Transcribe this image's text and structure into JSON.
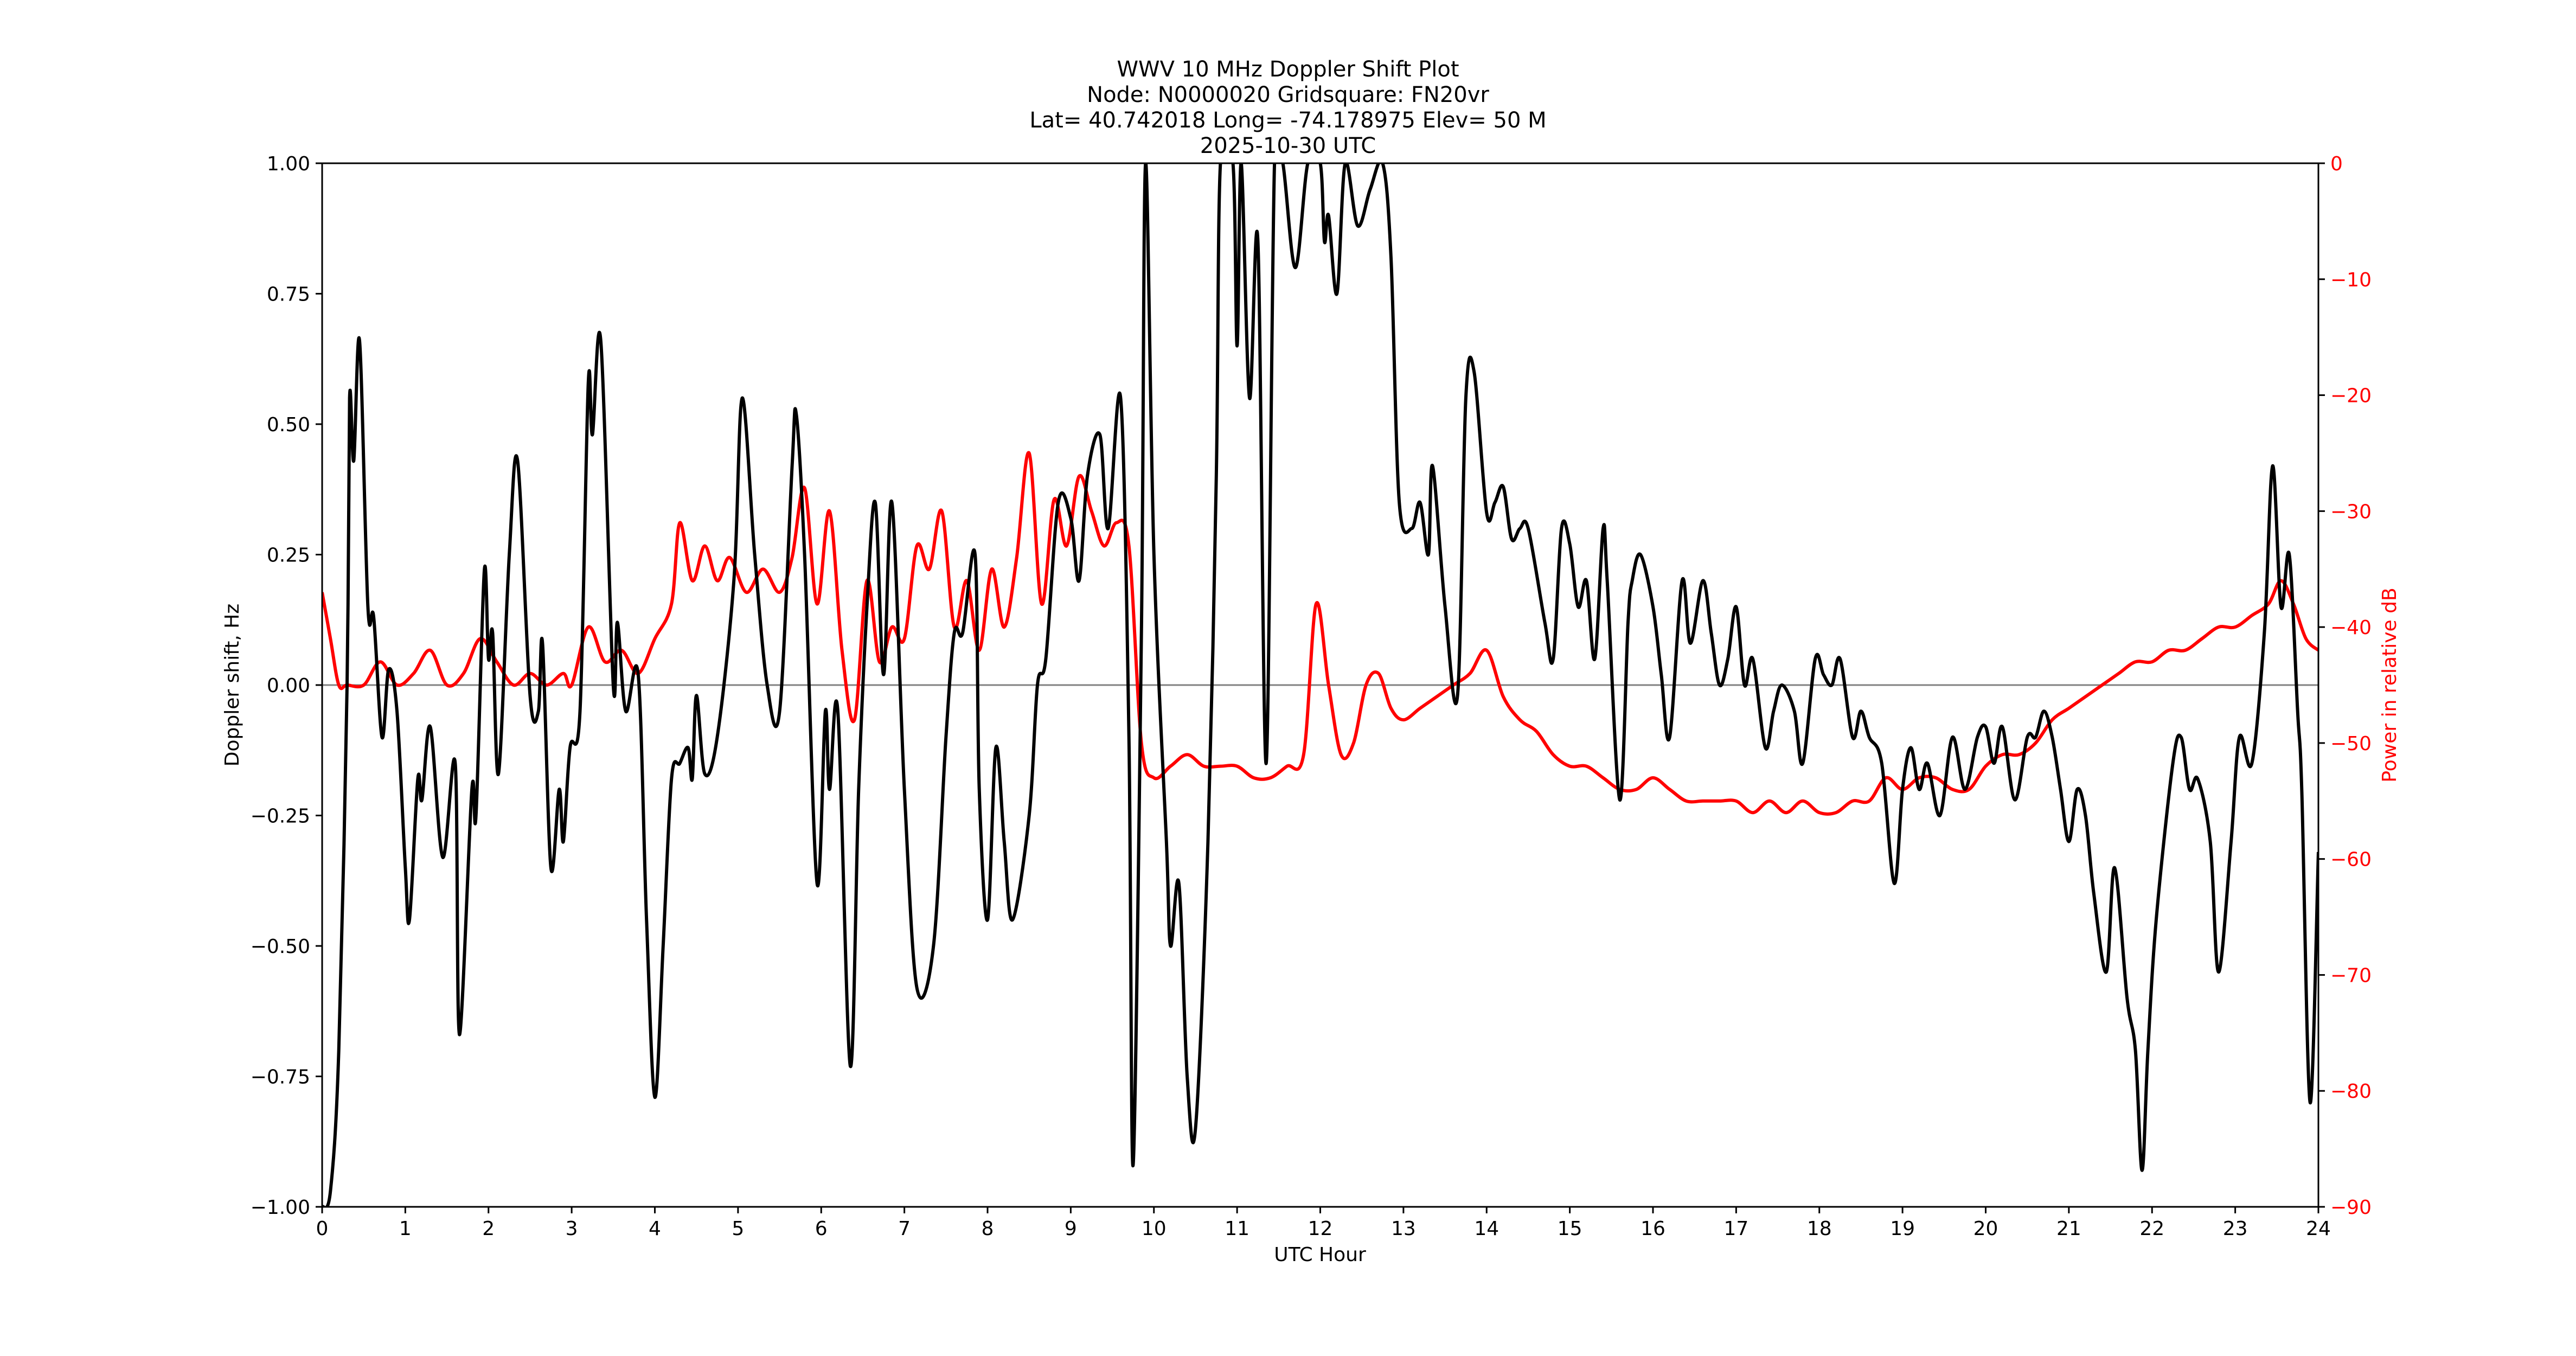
{
  "title": {
    "line1": "WWV 10 MHz Doppler Shift Plot",
    "line2": "Node:  N0000020     Gridsquare:  FN20vr",
    "line3": "Lat= 40.742018    Long= -74.178975    Elev= 50 M",
    "line4": "2025-10-30  UTC"
  },
  "axes": {
    "xlabel": "UTC Hour",
    "ylabel_left": "Doppler shift, Hz",
    "ylabel_right": "Power in relative dB",
    "x_ticks": [
      "0",
      "1",
      "2",
      "3",
      "4",
      "5",
      "6",
      "7",
      "8",
      "9",
      "10",
      "11",
      "12",
      "13",
      "14",
      "15",
      "16",
      "17",
      "18",
      "19",
      "20",
      "21",
      "22",
      "23",
      "24"
    ],
    "y_left_ticks": [
      "1.00",
      "0.75",
      "0.50",
      "0.25",
      "0.00",
      "−0.25",
      "−0.50",
      "−0.75",
      "−1.00"
    ],
    "y_right_ticks": [
      "0",
      "−10",
      "−20",
      "−30",
      "−40",
      "−50",
      "−60",
      "−70",
      "−80",
      "−90"
    ]
  },
  "colors": {
    "doppler": "#000000",
    "power": "#ff0000",
    "zero_line": "#808080",
    "right_axis_text": "#ff0000"
  },
  "chart_data": {
    "type": "line",
    "title": "WWV 10 MHz Doppler Shift Plot — Node: N0000020  Gridsquare: FN20vr — Lat= 40.742018 Long= -74.178975 Elev= 50 M — 2025-10-30 UTC",
    "xlabel": "UTC Hour",
    "ylabel": "Doppler shift, Hz",
    "ylabel_right": "Power in relative dB",
    "xlim": [
      0,
      24
    ],
    "ylim": [
      -1.0,
      1.0
    ],
    "ylim_right": [
      -90,
      0
    ],
    "grid": false,
    "reference_line": {
      "y": 0.0,
      "color": "#808080"
    },
    "series": [
      {
        "name": "Doppler shift, Hz",
        "axis": "left",
        "color": "#000000",
        "x": [
          0,
          0.1,
          0.2,
          0.3,
          0.33,
          0.38,
          0.45,
          0.55,
          0.62,
          0.72,
          0.8,
          0.9,
          1.0,
          1.05,
          1.15,
          1.2,
          1.3,
          1.45,
          1.6,
          1.65,
          1.8,
          1.85,
          1.95,
          2.0,
          2.05,
          2.12,
          2.25,
          2.35,
          2.5,
          2.6,
          2.65,
          2.75,
          2.85,
          2.9,
          2.98,
          3.1,
          3.2,
          3.25,
          3.35,
          3.5,
          3.55,
          3.65,
          3.8,
          3.9,
          4.0,
          4.1,
          4.2,
          4.3,
          4.4,
          4.45,
          4.5,
          4.6,
          4.75,
          4.95,
          5.05,
          5.2,
          5.35,
          5.5,
          5.65,
          5.7,
          5.8,
          5.95,
          6.05,
          6.1,
          6.2,
          6.35,
          6.45,
          6.55,
          6.65,
          6.75,
          6.85,
          7.0,
          7.15,
          7.35,
          7.5,
          7.6,
          7.7,
          7.85,
          7.9,
          8.0,
          8.1,
          8.2,
          8.3,
          8.5,
          8.6,
          8.7,
          8.85,
          9.0,
          9.1,
          9.2,
          9.35,
          9.45,
          9.6,
          9.7,
          9.75,
          9.85,
          9.9,
          10.0,
          10.15,
          10.2,
          10.3,
          10.4,
          10.5,
          10.65,
          10.75,
          10.8,
          10.95,
          11.0,
          11.05,
          11.15,
          11.25,
          11.35,
          11.45,
          11.55,
          11.7,
          11.85,
          12.0,
          12.05,
          12.1,
          12.2,
          12.3,
          12.45,
          12.6,
          12.75,
          12.85,
          12.95,
          13.1,
          13.2,
          13.3,
          13.35,
          13.5,
          13.65,
          13.75,
          13.85,
          14.0,
          14.1,
          14.2,
          14.3,
          14.4,
          14.5,
          14.7,
          14.8,
          14.9,
          15.0,
          15.1,
          15.2,
          15.3,
          15.4,
          15.45,
          15.6,
          15.7,
          15.75,
          15.85,
          16.0,
          16.1,
          16.2,
          16.35,
          16.45,
          16.6,
          16.7,
          16.8,
          16.9,
          17.0,
          17.1,
          17.2,
          17.35,
          17.45,
          17.55,
          17.7,
          17.8,
          17.95,
          18.05,
          18.15,
          18.25,
          18.4,
          18.5,
          18.6,
          18.75,
          18.9,
          19.0,
          19.1,
          19.2,
          19.3,
          19.45,
          19.6,
          19.75,
          19.9,
          20.0,
          20.1,
          20.2,
          20.35,
          20.5,
          20.6,
          20.7,
          20.8,
          20.9,
          21.0,
          21.1,
          21.2,
          21.3,
          21.45,
          21.55,
          21.7,
          21.8,
          21.88,
          21.95,
          22.05,
          22.25,
          22.35,
          22.45,
          22.55,
          22.7,
          22.8,
          22.95,
          23.05,
          23.2,
          23.35,
          23.45,
          23.55,
          23.65,
          23.75,
          23.8,
          23.9,
          24.0
        ],
        "values": [
          -1.0,
          -0.97,
          -0.7,
          0.0,
          0.55,
          0.43,
          0.66,
          0.15,
          0.13,
          -0.1,
          0.03,
          -0.05,
          -0.35,
          -0.45,
          -0.18,
          -0.22,
          -0.08,
          -0.33,
          -0.15,
          -0.67,
          -0.2,
          -0.25,
          0.22,
          0.05,
          0.1,
          -0.17,
          0.25,
          0.43,
          -0.02,
          -0.05,
          0.08,
          -0.35,
          -0.2,
          -0.3,
          -0.12,
          -0.05,
          0.58,
          0.48,
          0.66,
          0.0,
          0.12,
          -0.05,
          0.02,
          -0.45,
          -0.79,
          -0.5,
          -0.18,
          -0.15,
          -0.12,
          -0.18,
          -0.02,
          -0.17,
          -0.1,
          0.2,
          0.55,
          0.25,
          0.0,
          -0.05,
          0.42,
          0.52,
          0.25,
          -0.38,
          -0.05,
          -0.2,
          -0.05,
          -0.73,
          -0.2,
          0.15,
          0.35,
          0.02,
          0.35,
          -0.2,
          -0.58,
          -0.5,
          -0.1,
          0.1,
          0.1,
          0.25,
          -0.2,
          -0.45,
          -0.12,
          -0.3,
          -0.45,
          -0.25,
          0.0,
          0.05,
          0.35,
          0.32,
          0.2,
          0.4,
          0.48,
          0.3,
          0.55,
          -0.1,
          -0.92,
          0.1,
          1.0,
          0.25,
          -0.3,
          -0.5,
          -0.38,
          -0.75,
          -0.85,
          -0.3,
          0.4,
          1.0,
          1.0,
          0.65,
          1.0,
          0.55,
          0.85,
          -0.15,
          1.0,
          1.0,
          0.8,
          1.0,
          1.0,
          0.85,
          0.9,
          0.75,
          1.0,
          0.88,
          0.95,
          1.0,
          0.82,
          0.35,
          0.3,
          0.35,
          0.25,
          0.42,
          0.15,
          -0.02,
          0.55,
          0.6,
          0.33,
          0.35,
          0.38,
          0.28,
          0.3,
          0.3,
          0.12,
          0.05,
          0.3,
          0.27,
          0.15,
          0.2,
          0.05,
          0.3,
          0.2,
          -0.22,
          0.12,
          0.2,
          0.25,
          0.15,
          0.02,
          -0.1,
          0.2,
          0.08,
          0.2,
          0.1,
          0.0,
          0.05,
          0.15,
          0.0,
          0.05,
          -0.12,
          -0.05,
          0.0,
          -0.05,
          -0.15,
          0.05,
          0.02,
          0.0,
          0.05,
          -0.1,
          -0.05,
          -0.1,
          -0.15,
          -0.38,
          -0.2,
          -0.12,
          -0.2,
          -0.15,
          -0.25,
          -0.1,
          -0.2,
          -0.1,
          -0.08,
          -0.15,
          -0.08,
          -0.22,
          -0.1,
          -0.1,
          -0.05,
          -0.1,
          -0.2,
          -0.3,
          -0.2,
          -0.25,
          -0.4,
          -0.55,
          -0.35,
          -0.6,
          -0.7,
          -0.93,
          -0.7,
          -0.45,
          -0.15,
          -0.1,
          -0.2,
          -0.18,
          -0.3,
          -0.55,
          -0.3,
          -0.1,
          -0.15,
          0.1,
          0.42,
          0.15,
          0.25,
          -0.05,
          -0.2,
          -0.8,
          -0.32
        ]
      },
      {
        "name": "Power in relative dB",
        "axis": "right",
        "color": "#ff0000",
        "x": [
          0,
          0.1,
          0.2,
          0.3,
          0.5,
          0.7,
          0.9,
          1.1,
          1.3,
          1.5,
          1.7,
          1.9,
          2.1,
          2.3,
          2.5,
          2.7,
          2.9,
          3.0,
          3.2,
          3.4,
          3.6,
          3.8,
          4.0,
          4.2,
          4.3,
          4.45,
          4.6,
          4.75,
          4.9,
          5.1,
          5.3,
          5.5,
          5.65,
          5.8,
          5.95,
          6.1,
          6.25,
          6.4,
          6.55,
          6.7,
          6.85,
          7.0,
          7.15,
          7.3,
          7.45,
          7.6,
          7.75,
          7.9,
          8.05,
          8.2,
          8.35,
          8.5,
          8.65,
          8.8,
          8.95,
          9.1,
          9.25,
          9.4,
          9.55,
          9.7,
          9.85,
          10.0,
          10.2,
          10.4,
          10.6,
          10.8,
          11.0,
          11.2,
          11.4,
          11.6,
          11.8,
          11.95,
          12.1,
          12.25,
          12.4,
          12.55,
          12.7,
          12.85,
          13.0,
          13.2,
          13.4,
          13.6,
          13.8,
          14.0,
          14.2,
          14.4,
          14.6,
          14.8,
          15.0,
          15.2,
          15.4,
          15.6,
          15.8,
          16.0,
          16.2,
          16.4,
          16.6,
          16.8,
          17.0,
          17.2,
          17.4,
          17.6,
          17.8,
          18.0,
          18.2,
          18.4,
          18.6,
          18.8,
          19.0,
          19.2,
          19.4,
          19.6,
          19.8,
          20.0,
          20.2,
          20.4,
          20.6,
          20.8,
          21.0,
          21.2,
          21.4,
          21.6,
          21.8,
          22.0,
          22.2,
          22.4,
          22.6,
          22.8,
          23.0,
          23.2,
          23.4,
          23.55,
          23.7,
          23.85,
          24.0
        ],
        "values": [
          -37,
          -41,
          -45,
          -45,
          -45,
          -43,
          -45,
          -44,
          -42,
          -45,
          -44,
          -41,
          -43,
          -45,
          -44,
          -45,
          -44,
          -45,
          -40,
          -43,
          -42,
          -44,
          -41,
          -38,
          -31,
          -36,
          -33,
          -36,
          -34,
          -37,
          -35,
          -37,
          -34,
          -28,
          -38,
          -30,
          -42,
          -48,
          -36,
          -43,
          -40,
          -41,
          -33,
          -35,
          -30,
          -40,
          -36,
          -42,
          -35,
          -40,
          -34,
          -25,
          -38,
          -29,
          -33,
          -27,
          -30,
          -33,
          -31,
          -33,
          -50,
          -53,
          -52,
          -51,
          -52,
          -52,
          -52,
          -53,
          -53,
          -52,
          -51,
          -38,
          -45,
          -51,
          -50,
          -45,
          -44,
          -47,
          -48,
          -47,
          -46,
          -45,
          -44,
          -42,
          -46,
          -48,
          -49,
          -51,
          -52,
          -52,
          -53,
          -54,
          -54,
          -53,
          -54,
          -55,
          -55,
          -55,
          -55,
          -56,
          -55,
          -56,
          -55,
          -56,
          -56,
          -55,
          -55,
          -53,
          -54,
          -53,
          -53,
          -54,
          -54,
          -52,
          -51,
          -51,
          -50,
          -48,
          -47,
          -46,
          -45,
          -44,
          -43,
          -43,
          -42,
          -42,
          -41,
          -40,
          -40,
          -39,
          -38,
          -36,
          -38,
          -41,
          -42
        ]
      }
    ]
  }
}
